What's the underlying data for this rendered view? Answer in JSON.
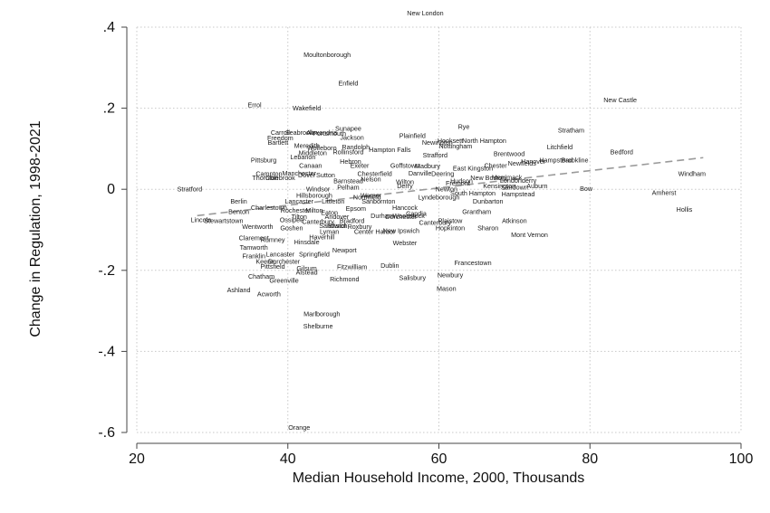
{
  "chart_data": {
    "type": "scatter",
    "title": "",
    "xlabel": "Median Household Income, 2000, Thousands",
    "ylabel": "Change in Regulation, 1998-2021",
    "xlim": [
      20,
      100
    ],
    "ylim": [
      -0.6,
      0.4
    ],
    "x_ticks": [
      20,
      40,
      60,
      80,
      100
    ],
    "y_ticks": [
      -0.6,
      -0.4,
      -0.2,
      0,
      0.2,
      0.4
    ],
    "x_tick_labels": [
      "20",
      "40",
      "60",
      "80",
      "100"
    ],
    "y_tick_labels": [
      "-.6",
      "-.4",
      "-.2",
      "0",
      ".2",
      ".4"
    ],
    "grid": true,
    "fit_line": {
      "x": [
        28,
        95
      ],
      "y": [
        -0.065,
        0.078
      ]
    },
    "points": [
      {
        "label": "New London",
        "x": 58.2,
        "y": 0.435
      },
      {
        "label": "Moultonborough",
        "x": 45.2,
        "y": 0.332
      },
      {
        "label": "Enfield",
        "x": 48.0,
        "y": 0.262
      },
      {
        "label": "New Castle",
        "x": 84.0,
        "y": 0.22
      },
      {
        "label": "Errol",
        "x": 35.6,
        "y": 0.208
      },
      {
        "label": "Wakefield",
        "x": 42.5,
        "y": 0.2
      },
      {
        "label": "Windham",
        "x": 93.5,
        "y": 0.038
      },
      {
        "label": "Stratham",
        "x": 77.5,
        "y": 0.145
      },
      {
        "label": "Bedford",
        "x": 84.2,
        "y": 0.092
      },
      {
        "label": "Litchfield",
        "x": 76.0,
        "y": 0.104
      },
      {
        "label": "Amherst",
        "x": 89.8,
        "y": -0.008
      },
      {
        "label": "Hollis",
        "x": 92.5,
        "y": -0.05
      },
      {
        "label": "Bow",
        "x": 79.5,
        "y": 0.002
      },
      {
        "label": "Rye",
        "x": 63.3,
        "y": 0.155
      },
      {
        "label": "Plainfield",
        "x": 56.5,
        "y": 0.132
      },
      {
        "label": "Hooksett",
        "x": 61.5,
        "y": 0.12
      },
      {
        "label": "North Hampton",
        "x": 66.0,
        "y": 0.12
      },
      {
        "label": "Newington",
        "x": 59.8,
        "y": 0.115
      },
      {
        "label": "Nottingham",
        "x": 62.2,
        "y": 0.107
      },
      {
        "label": "Brentwood",
        "x": 69.3,
        "y": 0.088
      },
      {
        "label": "Hanover",
        "x": 72.5,
        "y": 0.068
      },
      {
        "label": "Hampstead",
        "x": 75.5,
        "y": 0.072
      },
      {
        "label": "Brookline",
        "x": 78.0,
        "y": 0.072
      },
      {
        "label": "Newfields",
        "x": 71.0,
        "y": 0.064
      },
      {
        "label": "Chester",
        "x": 67.5,
        "y": 0.058
      },
      {
        "label": "East Kingston",
        "x": 64.5,
        "y": 0.052
      },
      {
        "label": "Strafford",
        "x": 59.5,
        "y": 0.084
      },
      {
        "label": "Sunapee",
        "x": 48.0,
        "y": 0.15
      },
      {
        "label": "Carroll",
        "x": 39.0,
        "y": 0.14
      },
      {
        "label": "Seabrook",
        "x": 41.5,
        "y": 0.14
      },
      {
        "label": "Alexandria",
        "x": 44.5,
        "y": 0.14
      },
      {
        "label": "Freedom",
        "x": 39.0,
        "y": 0.127
      },
      {
        "label": "Portsmouth",
        "x": 45.5,
        "y": 0.138
      },
      {
        "label": "Jackson",
        "x": 48.5,
        "y": 0.128
      },
      {
        "label": "Bartlett",
        "x": 38.7,
        "y": 0.115
      },
      {
        "label": "Meredith",
        "x": 42.5,
        "y": 0.108
      },
      {
        "label": "Wolfeboro",
        "x": 44.5,
        "y": 0.102
      },
      {
        "label": "Middleton",
        "x": 43.3,
        "y": 0.09
      },
      {
        "label": "Randolph",
        "x": 49.0,
        "y": 0.104
      },
      {
        "label": "Hampton Falls",
        "x": 53.5,
        "y": 0.097
      },
      {
        "label": "Rollinsford",
        "x": 48.0,
        "y": 0.092
      },
      {
        "label": "Lebanon",
        "x": 42.0,
        "y": 0.08
      },
      {
        "label": "Pittsburg",
        "x": 36.8,
        "y": 0.072
      },
      {
        "label": "Canaan",
        "x": 43.0,
        "y": 0.058
      },
      {
        "label": "Hebron",
        "x": 48.3,
        "y": 0.068
      },
      {
        "label": "Exeter",
        "x": 49.5,
        "y": 0.058
      },
      {
        "label": "Goffstown",
        "x": 55.5,
        "y": 0.058
      },
      {
        "label": "Madbury",
        "x": 58.5,
        "y": 0.057
      },
      {
        "label": "Campton",
        "x": 37.5,
        "y": 0.038
      },
      {
        "label": "Merrimack",
        "x": 69.0,
        "y": 0.03
      },
      {
        "label": "New Boston",
        "x": 66.5,
        "y": 0.028
      },
      {
        "label": "Londonderry",
        "x": 70.5,
        "y": 0.022
      },
      {
        "label": "Kensington",
        "x": 68.0,
        "y": 0.008
      },
      {
        "label": "Sandown",
        "x": 70.0,
        "y": 0.005
      },
      {
        "label": "Auburn",
        "x": 73.0,
        "y": 0.008
      },
      {
        "label": "South Hampton",
        "x": 64.5,
        "y": -0.01
      },
      {
        "label": "Hampstead",
        "x": 70.5,
        "y": -0.012
      },
      {
        "label": "Newton",
        "x": 61.0,
        "y": 0.0
      },
      {
        "label": "Fremont",
        "x": 62.5,
        "y": 0.015
      },
      {
        "label": "Dunbarton",
        "x": 66.5,
        "y": -0.03
      },
      {
        "label": "Grantham",
        "x": 65.0,
        "y": -0.055
      },
      {
        "label": "Atkinson",
        "x": 70.0,
        "y": -0.078
      },
      {
        "label": "Sharon",
        "x": 66.5,
        "y": -0.095
      },
      {
        "label": "Mont Vernon",
        "x": 72.0,
        "y": -0.112
      },
      {
        "label": "Hopkinton",
        "x": 61.5,
        "y": -0.095
      },
      {
        "label": "Plaistow",
        "x": 61.5,
        "y": -0.078
      },
      {
        "label": "Canterbury",
        "x": 59.5,
        "y": -0.082
      },
      {
        "label": "Francestown",
        "x": 64.5,
        "y": -0.182
      },
      {
        "label": "Newbury",
        "x": 61.5,
        "y": -0.212
      },
      {
        "label": "Mason",
        "x": 61.0,
        "y": -0.245
      },
      {
        "label": "Salisbury",
        "x": 56.5,
        "y": -0.218
      },
      {
        "label": "Dublin",
        "x": 53.5,
        "y": -0.188
      },
      {
        "label": "Fitzwilliam",
        "x": 48.5,
        "y": -0.192
      },
      {
        "label": "Richmond",
        "x": 47.5,
        "y": -0.222
      },
      {
        "label": "Webster",
        "x": 55.5,
        "y": -0.132
      },
      {
        "label": "Chesterfield",
        "x": 51.5,
        "y": 0.038
      },
      {
        "label": "Danville",
        "x": 57.5,
        "y": 0.04
      },
      {
        "label": "Deering",
        "x": 60.5,
        "y": 0.038
      },
      {
        "label": "Wilton",
        "x": 55.5,
        "y": 0.018
      },
      {
        "label": "Derry",
        "x": 55.5,
        "y": 0.008
      },
      {
        "label": "Hancock",
        "x": 55.5,
        "y": -0.045
      },
      {
        "label": "Woodstock",
        "x": 56.0,
        "y": -0.065
      },
      {
        "label": "Candia",
        "x": 57.0,
        "y": -0.06
      },
      {
        "label": "Durham",
        "x": 52.5,
        "y": -0.065
      },
      {
        "label": "Dorchester",
        "x": 55.0,
        "y": -0.068
      },
      {
        "label": "Center Harbor",
        "x": 51.5,
        "y": -0.105
      },
      {
        "label": "New Ipswich",
        "x": 55.0,
        "y": -0.102
      },
      {
        "label": "Roxbury",
        "x": 49.5,
        "y": -0.092
      },
      {
        "label": "Lyman",
        "x": 45.5,
        "y": -0.105
      },
      {
        "label": "Eaton",
        "x": 45.5,
        "y": -0.058
      },
      {
        "label": "Tilton",
        "x": 41.5,
        "y": -0.068
      },
      {
        "label": "Lincoln",
        "x": 28.5,
        "y": -0.075
      },
      {
        "label": "Stewartstown",
        "x": 31.5,
        "y": -0.078
      },
      {
        "label": "Berlin",
        "x": 33.5,
        "y": -0.03
      },
      {
        "label": "Benton",
        "x": 33.5,
        "y": -0.055
      },
      {
        "label": "Wentworth",
        "x": 36.0,
        "y": -0.092
      },
      {
        "label": "Claremont",
        "x": 35.5,
        "y": -0.12
      },
      {
        "label": "Rumney",
        "x": 38.0,
        "y": -0.125
      },
      {
        "label": "Tamworth",
        "x": 35.5,
        "y": -0.143
      },
      {
        "label": "Franklin",
        "x": 35.5,
        "y": -0.165
      },
      {
        "label": "Keene",
        "x": 37.0,
        "y": -0.178
      },
      {
        "label": "Dorchester",
        "x": 39.5,
        "y": -0.178
      },
      {
        "label": "Pittsfield",
        "x": 38.0,
        "y": -0.19
      },
      {
        "label": "Chatham",
        "x": 36.5,
        "y": -0.215
      },
      {
        "label": "Greenville",
        "x": 39.5,
        "y": -0.225
      },
      {
        "label": "Gilsum",
        "x": 42.5,
        "y": -0.195
      },
      {
        "label": "Alstead",
        "x": 42.5,
        "y": -0.205
      },
      {
        "label": "Ashland",
        "x": 33.5,
        "y": -0.248
      },
      {
        "label": "Acworth",
        "x": 37.5,
        "y": -0.258
      },
      {
        "label": "Lancaster",
        "x": 39.0,
        "y": -0.16
      },
      {
        "label": "Springfield",
        "x": 43.5,
        "y": -0.16
      },
      {
        "label": "Hinsdale",
        "x": 42.5,
        "y": -0.13
      },
      {
        "label": "Haverhill",
        "x": 44.5,
        "y": -0.118
      },
      {
        "label": "Newport",
        "x": 47.5,
        "y": -0.15
      },
      {
        "label": "Sandwich",
        "x": 46.0,
        "y": -0.09
      },
      {
        "label": "Marlborough",
        "x": 44.5,
        "y": -0.308
      },
      {
        "label": "Shelburne",
        "x": 44.0,
        "y": -0.338
      },
      {
        "label": "Orange",
        "x": 41.5,
        "y": -0.588
      },
      {
        "label": "Milton",
        "x": 43.5,
        "y": -0.052
      },
      {
        "label": "Canterbury",
        "x": 44.0,
        "y": -0.08
      },
      {
        "label": "Ossipee",
        "x": 40.5,
        "y": -0.075
      },
      {
        "label": "Charlestown",
        "x": 37.5,
        "y": -0.045
      },
      {
        "label": "Rochester",
        "x": 41.0,
        "y": -0.052
      },
      {
        "label": "Lyndeborough",
        "x": 60.0,
        "y": -0.02
      },
      {
        "label": "Stratford",
        "x": 27.0,
        "y": 0.0
      },
      {
        "label": "Thornton",
        "x": 37.0,
        "y": 0.028
      },
      {
        "label": "Colebrook",
        "x": 39.0,
        "y": 0.028
      },
      {
        "label": "Dover",
        "x": 42.5,
        "y": 0.035
      },
      {
        "label": "Sutton",
        "x": 45.0,
        "y": 0.035
      },
      {
        "label": "Manchester",
        "x": 41.5,
        "y": 0.04
      },
      {
        "label": "Windsor",
        "x": 44.0,
        "y": 0.0
      },
      {
        "label": "Pelham",
        "x": 48.0,
        "y": 0.005
      },
      {
        "label": "Lancaster",
        "x": 41.5,
        "y": -0.03
      },
      {
        "label": "Littleton",
        "x": 46.0,
        "y": -0.03
      },
      {
        "label": "Hillsborough",
        "x": 43.5,
        "y": -0.015
      },
      {
        "label": "Warner",
        "x": 51.0,
        "y": -0.015
      },
      {
        "label": "Sanbornton",
        "x": 52.0,
        "y": -0.03
      },
      {
        "label": "Bradford",
        "x": 48.5,
        "y": -0.078
      },
      {
        "label": "Bristol",
        "x": 46.5,
        "y": -0.09
      },
      {
        "label": "Goshen",
        "x": 40.5,
        "y": -0.095
      },
      {
        "label": "Epsom",
        "x": 49.0,
        "y": -0.048
      },
      {
        "label": "Northfield",
        "x": 50.5,
        "y": -0.02
      },
      {
        "label": "Barnstead",
        "x": 48.0,
        "y": 0.02
      },
      {
        "label": "Andover",
        "x": 46.5,
        "y": -0.068
      },
      {
        "label": "Nelson",
        "x": 51.0,
        "y": 0.025
      },
      {
        "label": "Hudson",
        "x": 63.0,
        "y": 0.02
      }
    ]
  }
}
